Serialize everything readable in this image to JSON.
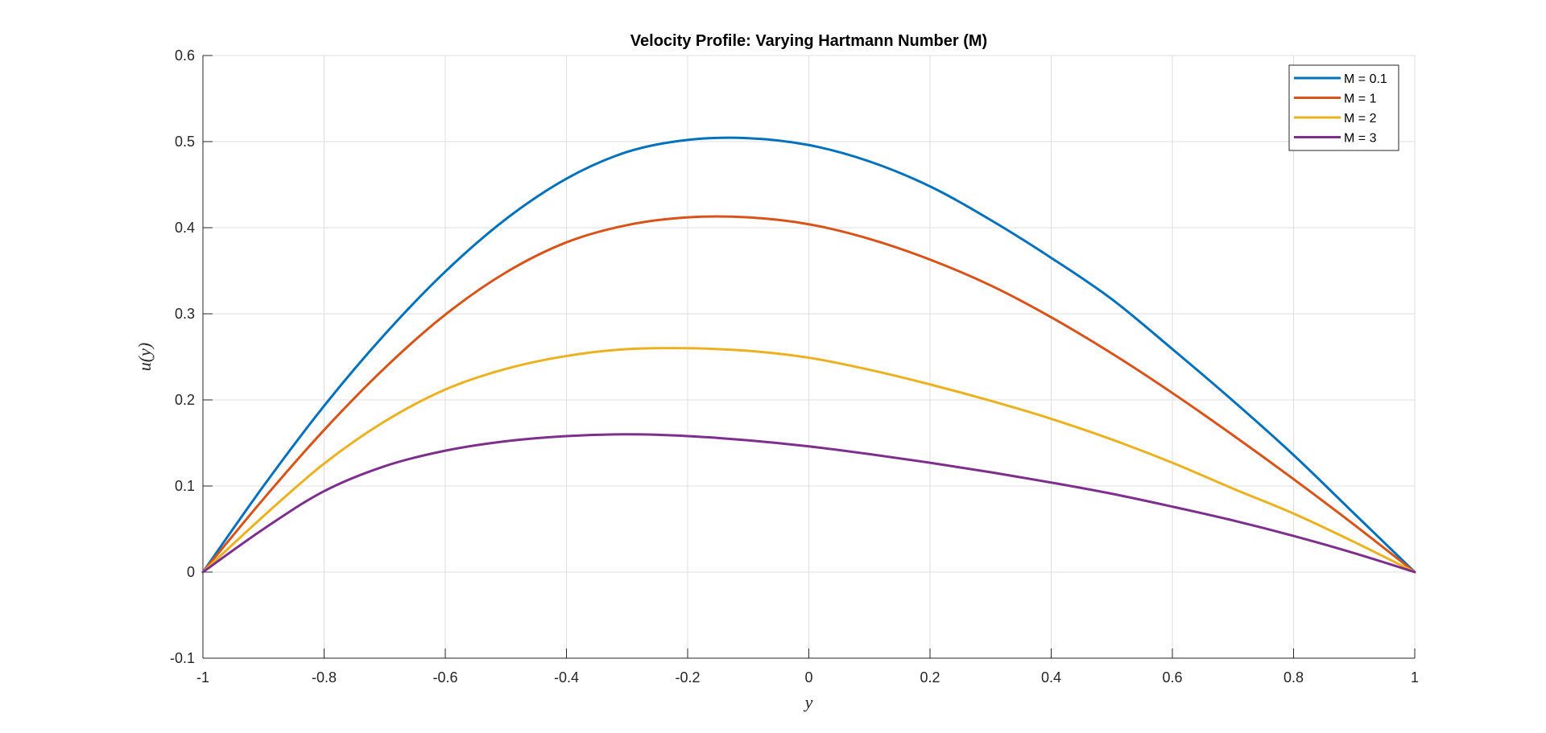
{
  "chart_data": {
    "type": "line",
    "title": "Velocity Profile: Varying Hartmann Number (M)",
    "xlabel": "y",
    "ylabel": "u(y)",
    "xlim": [
      -1,
      1
    ],
    "ylim": [
      -0.1,
      0.6
    ],
    "xticks": [
      -1,
      -0.8,
      -0.6,
      -0.4,
      -0.2,
      0,
      0.2,
      0.4,
      0.6,
      0.8,
      1
    ],
    "xtick_labels": [
      "-1",
      "-0.8",
      "-0.6",
      "-0.4",
      "-0.2",
      "0",
      "0.2",
      "0.4",
      "0.6",
      "0.8",
      "1"
    ],
    "yticks": [
      -0.1,
      0,
      0.1,
      0.2,
      0.3,
      0.4,
      0.5,
      0.6
    ],
    "ytick_labels": [
      "-0.1",
      "0",
      "0.1",
      "0.2",
      "0.3",
      "0.4",
      "0.5",
      "0.6"
    ],
    "grid": true,
    "legend_position": "top-right",
    "x": [
      -1,
      -0.9,
      -0.8,
      -0.7,
      -0.6,
      -0.5,
      -0.4,
      -0.3,
      -0.2,
      -0.1,
      0,
      0.1,
      0.2,
      0.3,
      0.4,
      0.5,
      0.6,
      0.7,
      0.8,
      0.9,
      1
    ],
    "series": [
      {
        "name": "M = 0.1",
        "color": "#0072BD",
        "values": [
          0,
          0.1,
          0.193,
          0.276,
          0.349,
          0.41,
          0.457,
          0.488,
          0.502,
          0.504,
          0.496,
          0.477,
          0.448,
          0.409,
          0.365,
          0.317,
          0.259,
          0.199,
          0.136,
          0.068,
          0
        ]
      },
      {
        "name": "M = 1",
        "color": "#D95319",
        "values": [
          0,
          0.085,
          0.165,
          0.237,
          0.299,
          0.348,
          0.383,
          0.403,
          0.412,
          0.412,
          0.404,
          0.387,
          0.363,
          0.333,
          0.296,
          0.254,
          0.208,
          0.159,
          0.108,
          0.055,
          0
        ]
      },
      {
        "name": "M = 2",
        "color": "#EDB120",
        "values": [
          0,
          0.065,
          0.126,
          0.175,
          0.212,
          0.236,
          0.251,
          0.259,
          0.26,
          0.257,
          0.249,
          0.235,
          0.218,
          0.199,
          0.178,
          0.154,
          0.127,
          0.097,
          0.068,
          0.035,
          0
        ]
      },
      {
        "name": "M = 3",
        "color": "#7E2F8E",
        "values": [
          0,
          0.05,
          0.094,
          0.123,
          0.141,
          0.152,
          0.158,
          0.16,
          0.158,
          0.153,
          0.146,
          0.137,
          0.127,
          0.116,
          0.104,
          0.091,
          0.076,
          0.06,
          0.042,
          0.022,
          0
        ]
      }
    ]
  }
}
